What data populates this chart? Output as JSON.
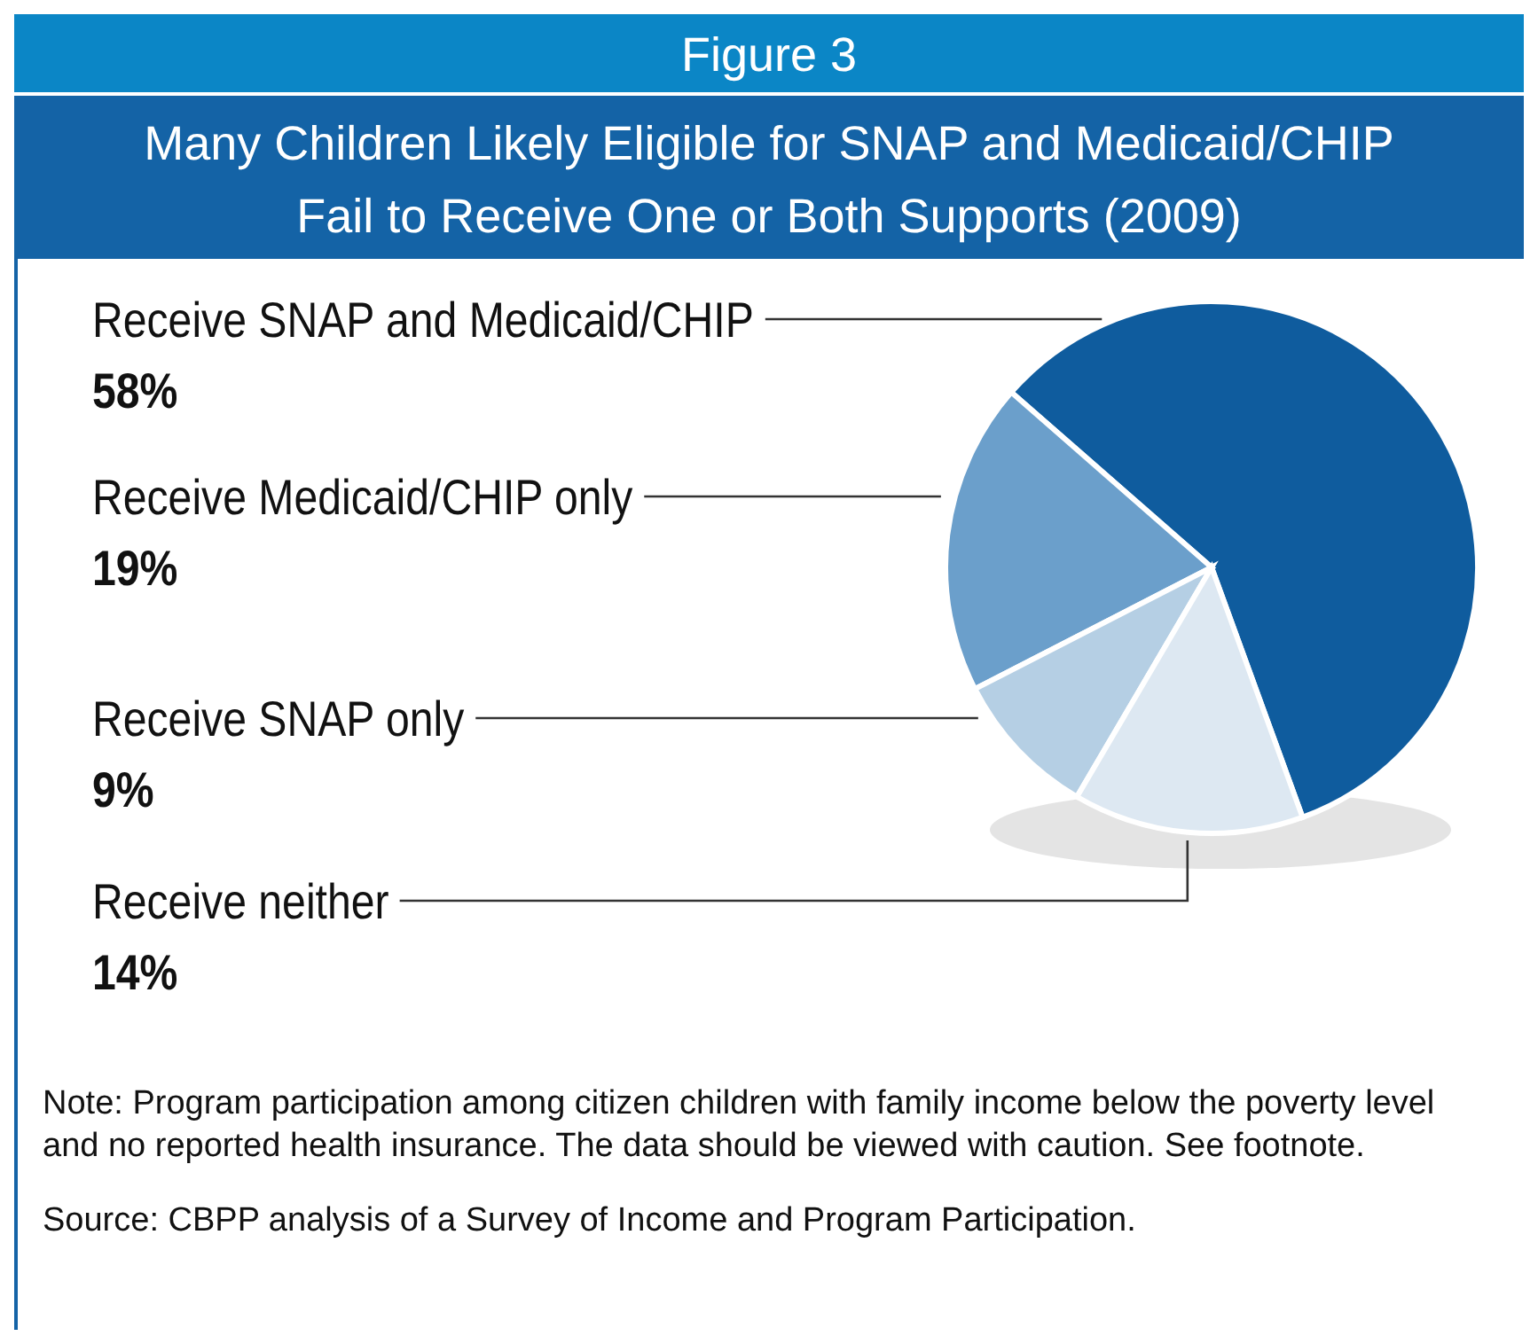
{
  "chart_data": {
    "type": "pie",
    "subtitle": "Figure 3",
    "title": "Many Children Likely Eligible for SNAP and Medicaid/CHIP\nFail to Receive One or Both Supports (2009)",
    "categories": [
      "Receive SNAP and Medicaid/CHIP",
      "Receive Medicaid/CHIP only",
      "Receive SNAP only",
      "Receive neither"
    ],
    "values": [
      58,
      19,
      9,
      14
    ],
    "value_labels": [
      "58%",
      "19%",
      "9%",
      "14%"
    ],
    "colors": [
      "#0f5c9e",
      "#6b9fcb",
      "#b5cfe4",
      "#dde8f2"
    ],
    "annotations": [
      "Note: Program participation among citizen children with family income below the poverty level and no reported health insurance.  The data should be viewed with caution.  See footnote.",
      "Source: CBPP analysis of a Survey of Income and Program Participation."
    ]
  }
}
